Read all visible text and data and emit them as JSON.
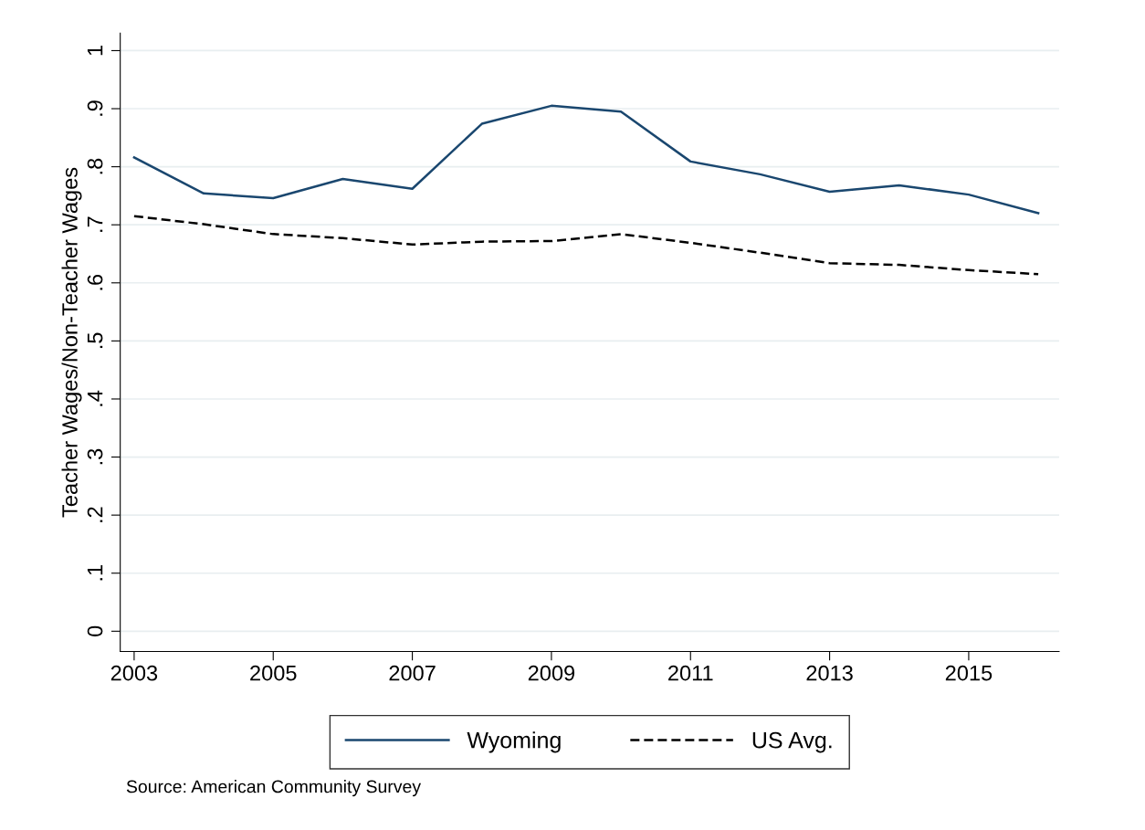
{
  "chart_data": {
    "type": "line",
    "ylabel": "Teacher Wages/Non-Teacher Wages",
    "x": [
      2003,
      2004,
      2005,
      2006,
      2007,
      2008,
      2009,
      2010,
      2011,
      2012,
      2013,
      2014,
      2015,
      2016
    ],
    "series": [
      {
        "name": "Wyoming",
        "color": "#1a476f",
        "line_style": "solid",
        "values": [
          0.816,
          0.754,
          0.746,
          0.779,
          0.762,
          0.874,
          0.905,
          0.895,
          0.809,
          0.787,
          0.757,
          0.768,
          0.752,
          0.72
        ]
      },
      {
        "name": "US Avg.",
        "color": "#000000",
        "line_style": "dashed",
        "values": [
          0.715,
          0.701,
          0.684,
          0.677,
          0.666,
          0.671,
          0.672,
          0.684,
          0.669,
          0.652,
          0.634,
          0.631,
          0.622,
          0.615
        ]
      }
    ],
    "xlim": [
      2002.8,
      2016.3
    ],
    "xticks": [
      2003,
      2005,
      2007,
      2009,
      2011,
      2013,
      2015
    ],
    "ylim": [
      -0.035,
      1.03
    ],
    "yticks": [
      {
        "value": 0,
        "label": "0"
      },
      {
        "value": 0.1,
        "label": ".1"
      },
      {
        "value": 0.2,
        "label": ".2"
      },
      {
        "value": 0.3,
        "label": ".3"
      },
      {
        "value": 0.4,
        "label": ".4"
      },
      {
        "value": 0.5,
        "label": ".5"
      },
      {
        "value": 0.6,
        "label": ".6"
      },
      {
        "value": 0.7,
        "label": ".7"
      },
      {
        "value": 0.8,
        "label": ".8"
      },
      {
        "value": 0.9,
        "label": ".9"
      },
      {
        "value": 1,
        "label": "1"
      }
    ],
    "grid": "y",
    "legend": "bottom",
    "annotations": [
      "Source: American Community Survey"
    ]
  }
}
